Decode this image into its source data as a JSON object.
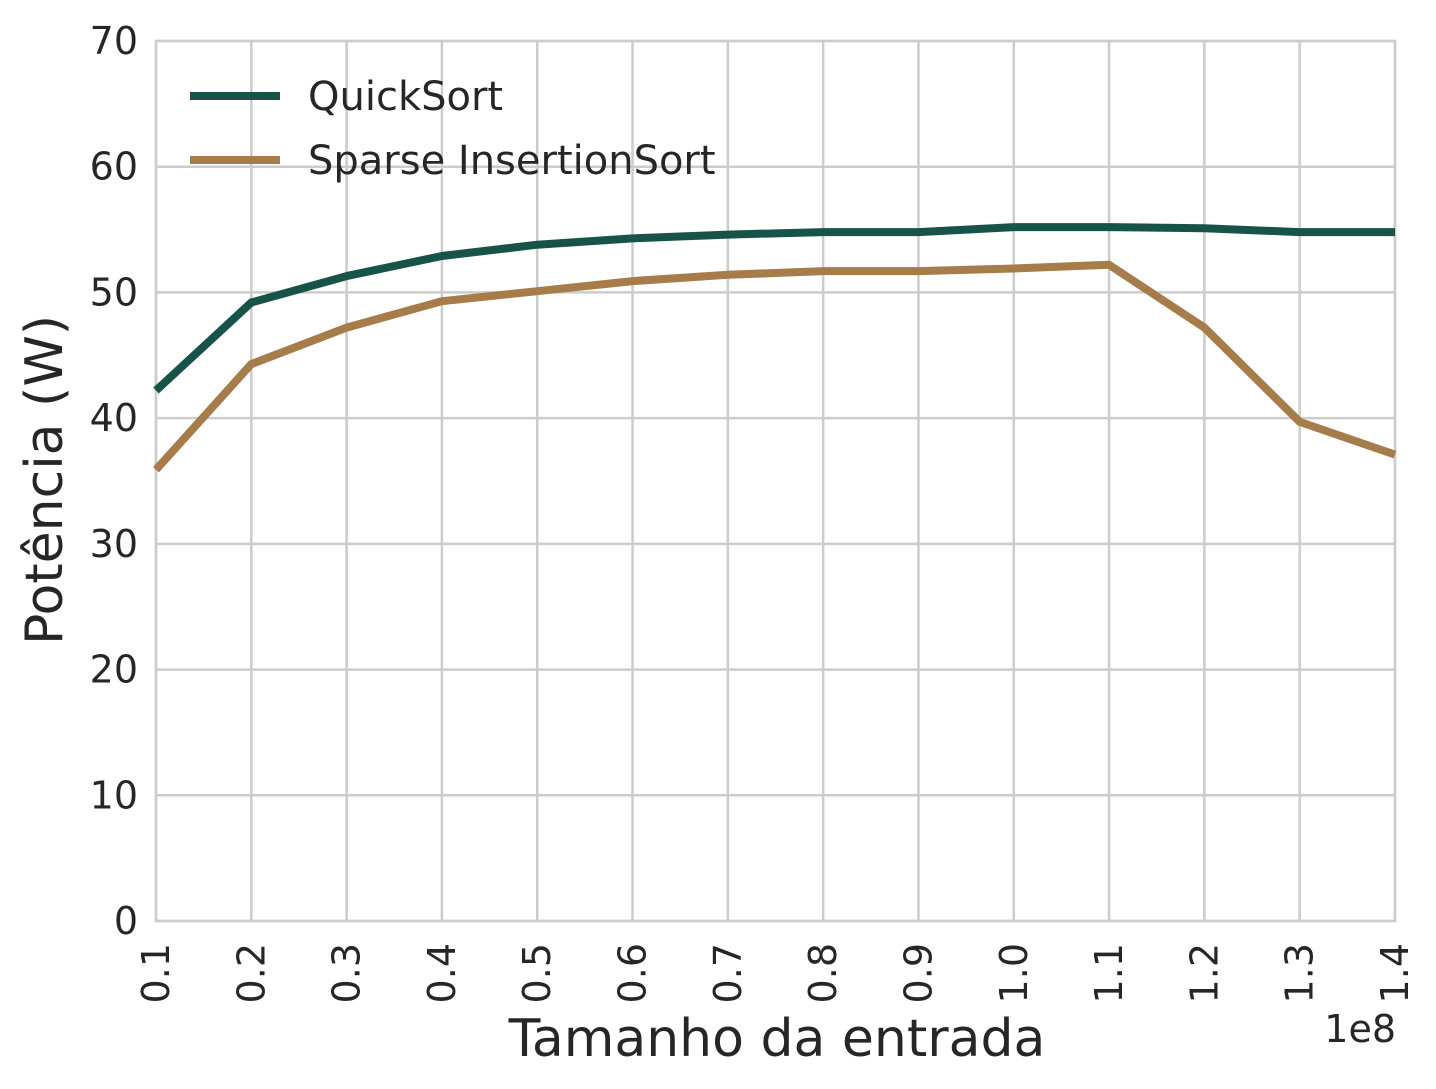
{
  "chart_data": {
    "type": "line",
    "xlabel": "Tamanho da entrada",
    "ylabel": "Potência (W)",
    "x_offset_label": "1e8",
    "x": [
      0.1,
      0.2,
      0.3,
      0.4,
      0.5,
      0.6,
      0.7,
      0.8,
      0.9,
      1.0,
      1.1,
      1.2,
      1.3,
      1.4
    ],
    "xlim": [
      0.1,
      1.4
    ],
    "ylim": [
      0,
      70
    ],
    "x_ticks": [
      "0.1",
      "0.2",
      "0.3",
      "0.4",
      "0.5",
      "0.6",
      "0.7",
      "0.8",
      "0.9",
      "1.0",
      "1.1",
      "1.2",
      "1.3",
      "1.4"
    ],
    "y_ticks": [
      "0",
      "10",
      "20",
      "30",
      "40",
      "50",
      "60",
      "70"
    ],
    "grid": true,
    "legend_position": "top-left",
    "series": [
      {
        "name": "QuickSort",
        "color": "#18534a",
        "values": [
          42.2,
          49.2,
          51.3,
          52.9,
          53.8,
          54.3,
          54.6,
          54.8,
          54.8,
          55.2,
          55.2,
          55.1,
          54.8,
          54.8
        ]
      },
      {
        "name": "Sparse InsertionSort",
        "color": "#a57c4a",
        "values": [
          35.9,
          44.3,
          47.2,
          49.3,
          50.1,
          50.9,
          51.4,
          51.7,
          51.7,
          51.9,
          52.2,
          47.2,
          39.7,
          37.1
        ]
      }
    ]
  }
}
